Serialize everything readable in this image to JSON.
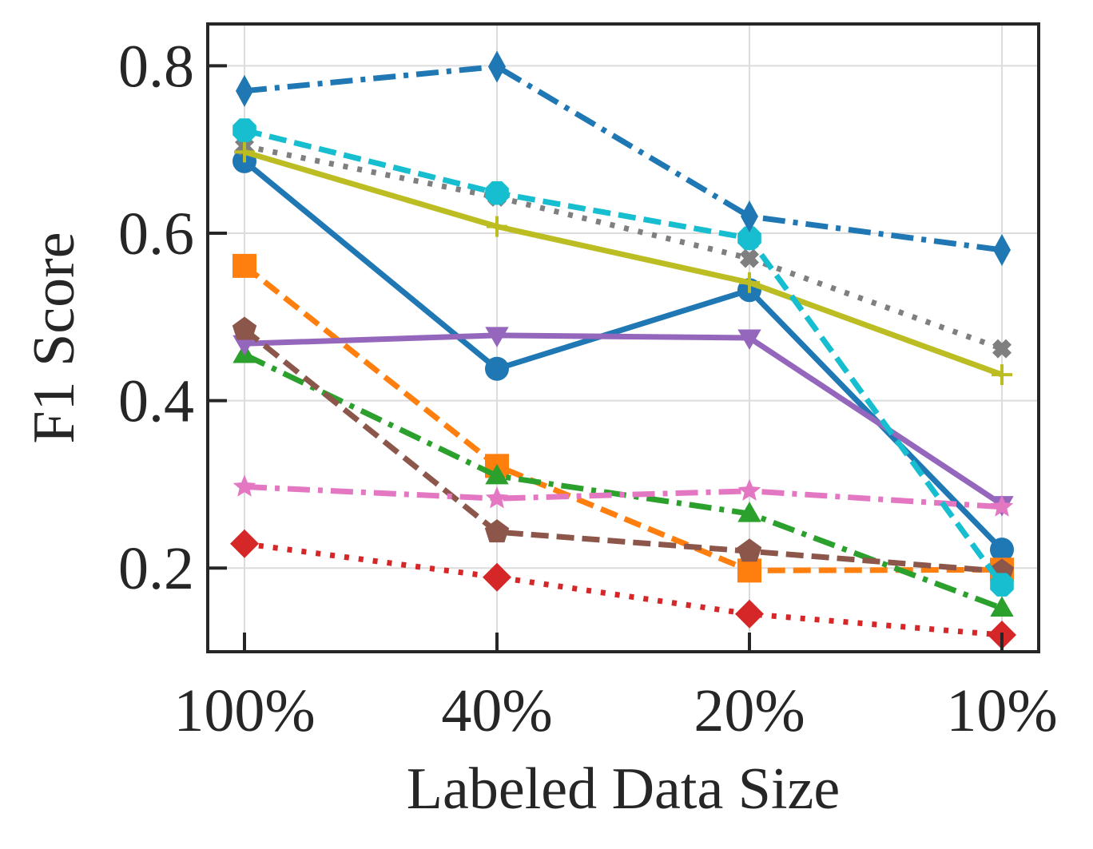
{
  "chart_data": {
    "type": "line",
    "title": "",
    "xlabel": "Labeled Data Size",
    "ylabel": "F1 Score",
    "categories": [
      "100%",
      "40%",
      "20%",
      "10%"
    ],
    "ylim": [
      0.1,
      0.85
    ],
    "yticks": [
      0.2,
      0.4,
      0.6,
      0.8
    ],
    "ytick_labels": [
      "0.2",
      "0.4",
      "0.6",
      "0.8"
    ],
    "grid": true,
    "series": [
      {
        "name": "series-blue-circle",
        "color": "#1f77b4",
        "linestyle": "solid",
        "marker": "circle",
        "values": [
          0.686,
          0.438,
          0.532,
          0.222
        ]
      },
      {
        "name": "series-orange-square",
        "color": "#ff7f0e",
        "linestyle": "dashed",
        "marker": "square",
        "values": [
          0.561,
          0.322,
          0.197,
          0.198
        ]
      },
      {
        "name": "series-green-triangle",
        "color": "#2ca02c",
        "linestyle": "dashdot",
        "marker": "triangle-up",
        "values": [
          0.455,
          0.31,
          0.265,
          0.152
        ]
      },
      {
        "name": "series-red-diamond",
        "color": "#d62728",
        "linestyle": "dotted",
        "marker": "diamond",
        "values": [
          0.229,
          0.189,
          0.145,
          0.12
        ]
      },
      {
        "name": "series-purple-triangle-down",
        "color": "#9467bd",
        "linestyle": "solid",
        "marker": "triangle-down",
        "values": [
          0.468,
          0.478,
          0.475,
          0.276
        ]
      },
      {
        "name": "series-brown-pentagon",
        "color": "#8c564b",
        "linestyle": "dashed",
        "marker": "pentagon",
        "values": [
          0.485,
          0.243,
          0.22,
          0.196
        ]
      },
      {
        "name": "series-pink-star",
        "color": "#e377c2",
        "linestyle": "dashdot",
        "marker": "star",
        "values": [
          0.297,
          0.283,
          0.292,
          0.273
        ]
      },
      {
        "name": "series-gray-x",
        "color": "#7f7f7f",
        "linestyle": "dotted",
        "marker": "x",
        "values": [
          0.704,
          0.643,
          0.57,
          0.462
        ]
      },
      {
        "name": "series-olive-plus",
        "color": "#bcbd22",
        "linestyle": "solid",
        "marker": "plus",
        "values": [
          0.697,
          0.608,
          0.541,
          0.431
        ]
      },
      {
        "name": "series-cyan-octagon",
        "color": "#17becf",
        "linestyle": "dashed",
        "marker": "octagon",
        "values": [
          0.723,
          0.648,
          0.594,
          0.18
        ]
      },
      {
        "name": "series-blue-thin-diamond",
        "color": "#1f77b4",
        "linestyle": "dashdot",
        "marker": "thin-diamond",
        "values": [
          0.77,
          0.799,
          0.62,
          0.58
        ]
      }
    ]
  }
}
